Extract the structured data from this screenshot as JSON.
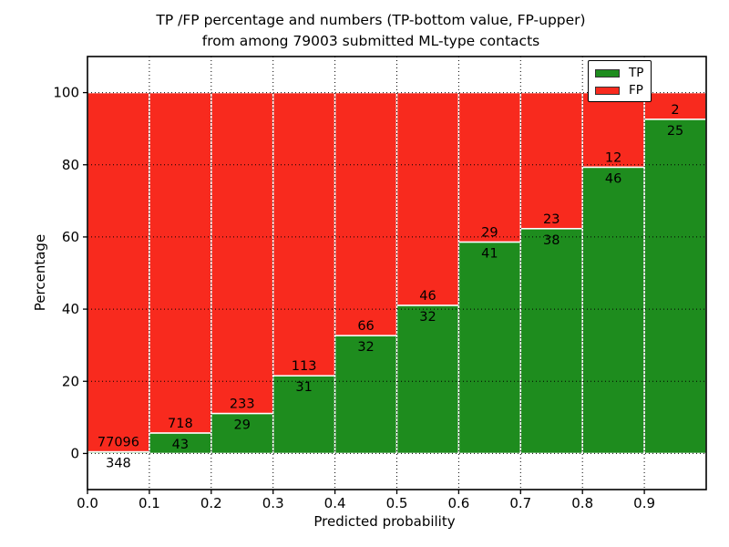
{
  "figure": {
    "title_line1": "TP /FP percentage and numbers (TP-bottom value, FP-upper)",
    "title_line2": "from among 79003 submitted ML-type contacts"
  },
  "legend": {
    "position": "upper right",
    "items": [
      {
        "label": "TP",
        "color": "#1e8c1e"
      },
      {
        "label": "FP",
        "color": "#f82a1e"
      }
    ]
  },
  "chart_data": {
    "type": "bar",
    "stacked": true,
    "unit": "percent_of_bin",
    "title": "TP /FP percentage and numbers (TP-bottom value, FP-upper) from among 79003 submitted ML-type contacts",
    "xlabel": "Predicted probability",
    "ylabel": "Percentage",
    "total_contacts": 79003,
    "x_tick_labels": [
      "0.0",
      "0.1",
      "0.2",
      "0.3",
      "0.4",
      "0.5",
      "0.6",
      "0.7",
      "0.8",
      "0.9"
    ],
    "y_ticks": [
      0,
      20,
      40,
      60,
      80,
      100
    ],
    "xlim": [
      0,
      1
    ],
    "ylim": [
      -10,
      110
    ],
    "bin_width": 0.1,
    "grid": "dotted",
    "bar_edge_color": "#ffffff",
    "series": [
      {
        "name": "TP",
        "color": "#1e8c1e",
        "counts": [
          348,
          43,
          29,
          31,
          32,
          32,
          41,
          38,
          46,
          25
        ]
      },
      {
        "name": "FP",
        "color": "#f82a1e",
        "counts": [
          77096,
          718,
          233,
          113,
          66,
          46,
          29,
          23,
          12,
          2
        ]
      }
    ],
    "tp_percent_of_bin": [
      0.45,
      5.65,
      11.07,
      21.53,
      32.65,
      41.03,
      58.57,
      62.3,
      79.31,
      92.59
    ]
  }
}
